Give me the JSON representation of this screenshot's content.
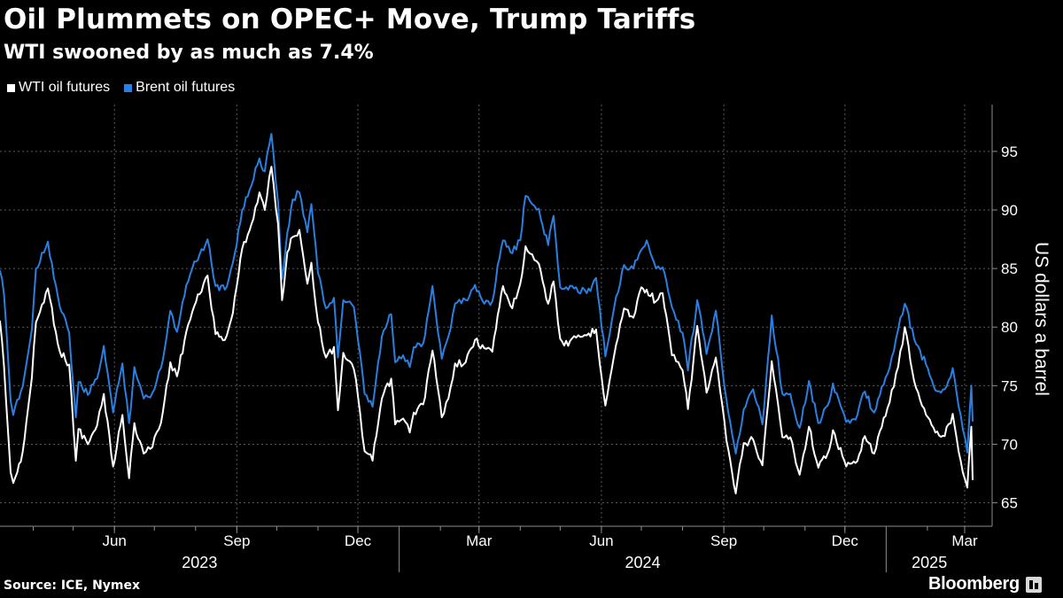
{
  "header": {
    "title": "Oil Plummets on OPEC+ Move, Trump Tariffs",
    "subtitle": "WTI swooned by as much as 7.4%"
  },
  "footer": {
    "source": "Source: ICE, Nymex",
    "brand": "Bloomberg"
  },
  "colors": {
    "background": "#000000",
    "wti": "#ffffff",
    "brent": "#2b7fe0",
    "grid": "#5a5a5a",
    "axis": "#8c8c8c"
  },
  "chart_data": {
    "type": "line",
    "title": "Oil Plummets on OPEC+ Move, Trump Tariffs",
    "subtitle": "WTI swooned by as much as 7.4%",
    "xlabel": "",
    "ylabel": "US dollars a barrel",
    "ylim": [
      63,
      99
    ],
    "yticks": [
      65,
      70,
      75,
      80,
      85,
      90,
      95
    ],
    "ytick_labels": [
      "65",
      "70",
      "75",
      "80",
      "85",
      "90",
      "95"
    ],
    "xlim": [
      "2023-03-07",
      "2025-03-07"
    ],
    "xticks": [
      {
        "date": "2023-06-01",
        "label": "Jun"
      },
      {
        "date": "2023-09-01",
        "label": "Sep"
      },
      {
        "date": "2023-12-01",
        "label": "Dec"
      },
      {
        "date": "2024-03-01",
        "label": "Mar"
      },
      {
        "date": "2024-06-01",
        "label": "Jun"
      },
      {
        "date": "2024-09-01",
        "label": "Sep"
      },
      {
        "date": "2024-12-01",
        "label": "Dec"
      },
      {
        "date": "2025-03-01",
        "label": "Mar"
      }
    ],
    "year_labels": [
      {
        "label": "2023",
        "from": "2023-03-07",
        "to": "2024-01-01"
      },
      {
        "label": "2024",
        "from": "2024-01-01",
        "to": "2025-01-01"
      },
      {
        "label": "2025",
        "from": "2025-01-01",
        "to": "2025-03-07"
      }
    ],
    "grid": true,
    "legend_position": "top-left",
    "series": [
      {
        "name": "WTI oil futures",
        "color": "#ffffff",
        "points": [
          [
            "2023-03-07",
            80.5
          ],
          [
            "2023-03-10",
            76.7
          ],
          [
            "2023-03-15",
            67.6
          ],
          [
            "2023-03-17",
            66.7
          ],
          [
            "2023-03-20",
            67.6
          ],
          [
            "2023-03-24",
            69.3
          ],
          [
            "2023-03-31",
            75.7
          ],
          [
            "2023-04-03",
            80.4
          ],
          [
            "2023-04-12",
            83.3
          ],
          [
            "2023-04-21",
            77.9
          ],
          [
            "2023-04-28",
            76.8
          ],
          [
            "2023-05-03",
            68.6
          ],
          [
            "2023-05-05",
            71.3
          ],
          [
            "2023-05-12",
            70.0
          ],
          [
            "2023-05-19",
            71.6
          ],
          [
            "2023-05-24",
            74.3
          ],
          [
            "2023-05-31",
            68.1
          ],
          [
            "2023-06-07",
            72.5
          ],
          [
            "2023-06-12",
            67.1
          ],
          [
            "2023-06-16",
            71.8
          ],
          [
            "2023-06-23",
            69.2
          ],
          [
            "2023-06-28",
            69.6
          ],
          [
            "2023-07-06",
            71.8
          ],
          [
            "2023-07-13",
            77.0
          ],
          [
            "2023-07-18",
            75.8
          ],
          [
            "2023-07-25",
            79.6
          ],
          [
            "2023-07-31",
            81.8
          ],
          [
            "2023-08-04",
            82.8
          ],
          [
            "2023-08-10",
            84.4
          ],
          [
            "2023-08-16",
            79.4
          ],
          [
            "2023-08-23",
            78.9
          ],
          [
            "2023-08-29",
            81.2
          ],
          [
            "2023-09-05",
            86.7
          ],
          [
            "2023-09-12",
            88.8
          ],
          [
            "2023-09-18",
            91.5
          ],
          [
            "2023-09-22",
            90.0
          ],
          [
            "2023-09-27",
            93.7
          ],
          [
            "2023-10-02",
            88.8
          ],
          [
            "2023-10-05",
            82.3
          ],
          [
            "2023-10-09",
            86.4
          ],
          [
            "2023-10-13",
            87.7
          ],
          [
            "2023-10-18",
            88.3
          ],
          [
            "2023-10-24",
            83.7
          ],
          [
            "2023-10-27",
            85.5
          ],
          [
            "2023-11-01",
            80.4
          ],
          [
            "2023-11-07",
            77.4
          ],
          [
            "2023-11-13",
            78.3
          ],
          [
            "2023-11-16",
            72.9
          ],
          [
            "2023-11-20",
            77.8
          ],
          [
            "2023-11-28",
            76.4
          ],
          [
            "2023-12-01",
            74.1
          ],
          [
            "2023-12-06",
            69.4
          ],
          [
            "2023-12-12",
            68.6
          ],
          [
            "2023-12-19",
            73.9
          ],
          [
            "2023-12-26",
            75.6
          ],
          [
            "2023-12-29",
            71.7
          ],
          [
            "2024-01-04",
            72.2
          ],
          [
            "2024-01-09",
            71.0
          ],
          [
            "2024-01-12",
            72.7
          ],
          [
            "2024-01-19",
            73.4
          ],
          [
            "2024-01-26",
            78.0
          ],
          [
            "2024-02-02",
            72.3
          ],
          [
            "2024-02-07",
            73.9
          ],
          [
            "2024-02-12",
            76.9
          ],
          [
            "2024-02-20",
            77.0
          ],
          [
            "2024-02-27",
            78.9
          ],
          [
            "2024-03-05",
            78.2
          ],
          [
            "2024-03-11",
            77.9
          ],
          [
            "2024-03-15",
            81.0
          ],
          [
            "2024-03-19",
            83.5
          ],
          [
            "2024-03-26",
            81.6
          ],
          [
            "2024-04-01",
            83.7
          ],
          [
            "2024-04-05",
            86.9
          ],
          [
            "2024-04-10",
            86.2
          ],
          [
            "2024-04-15",
            85.4
          ],
          [
            "2024-04-22",
            82.0
          ],
          [
            "2024-04-26",
            83.9
          ],
          [
            "2024-05-01",
            79.0
          ],
          [
            "2024-05-07",
            78.4
          ],
          [
            "2024-05-13",
            79.1
          ],
          [
            "2024-05-21",
            79.3
          ],
          [
            "2024-05-28",
            79.8
          ],
          [
            "2024-06-04",
            73.3
          ],
          [
            "2024-06-12",
            78.5
          ],
          [
            "2024-06-18",
            81.6
          ],
          [
            "2024-06-25",
            80.8
          ],
          [
            "2024-07-01",
            83.4
          ],
          [
            "2024-07-05",
            83.2
          ],
          [
            "2024-07-12",
            82.2
          ],
          [
            "2024-07-17",
            82.9
          ],
          [
            "2024-07-24",
            77.6
          ],
          [
            "2024-08-01",
            76.3
          ],
          [
            "2024-08-05",
            73.0
          ],
          [
            "2024-08-12",
            80.1
          ],
          [
            "2024-08-19",
            74.4
          ],
          [
            "2024-08-26",
            77.4
          ],
          [
            "2024-09-03",
            70.3
          ],
          [
            "2024-09-10",
            65.8
          ],
          [
            "2024-09-16",
            70.1
          ],
          [
            "2024-09-23",
            70.4
          ],
          [
            "2024-09-30",
            68.2
          ],
          [
            "2024-10-07",
            77.1
          ],
          [
            "2024-10-15",
            70.6
          ],
          [
            "2024-10-21",
            70.6
          ],
          [
            "2024-10-28",
            67.4
          ],
          [
            "2024-11-04",
            71.5
          ],
          [
            "2024-11-11",
            68.0
          ],
          [
            "2024-11-18",
            69.2
          ],
          [
            "2024-11-22",
            71.2
          ],
          [
            "2024-12-02",
            68.1
          ],
          [
            "2024-12-09",
            68.4
          ],
          [
            "2024-12-16",
            70.7
          ],
          [
            "2024-12-23",
            69.2
          ],
          [
            "2025-01-02",
            73.1
          ],
          [
            "2025-01-10",
            76.6
          ],
          [
            "2025-01-15",
            80.0
          ],
          [
            "2025-01-22",
            75.4
          ],
          [
            "2025-01-31",
            72.5
          ],
          [
            "2025-02-07",
            71.0
          ],
          [
            "2025-02-14",
            70.7
          ],
          [
            "2025-02-20",
            72.6
          ],
          [
            "2025-02-26",
            68.6
          ],
          [
            "2025-03-03",
            66.3
          ],
          [
            "2025-03-04",
            68.3
          ],
          [
            "2025-03-06",
            71.5
          ],
          [
            "2025-03-07",
            67.0
          ]
        ]
      },
      {
        "name": "Brent oil futures",
        "color": "#2b7fe0",
        "points": [
          [
            "2023-03-07",
            84.8
          ],
          [
            "2023-03-10",
            82.8
          ],
          [
            "2023-03-15",
            73.7
          ],
          [
            "2023-03-17",
            72.5
          ],
          [
            "2023-03-20",
            73.8
          ],
          [
            "2023-03-24",
            74.9
          ],
          [
            "2023-03-31",
            79.8
          ],
          [
            "2023-04-03",
            85.0
          ],
          [
            "2023-04-12",
            87.3
          ],
          [
            "2023-04-21",
            81.7
          ],
          [
            "2023-04-28",
            79.5
          ],
          [
            "2023-05-03",
            72.3
          ],
          [
            "2023-05-05",
            75.3
          ],
          [
            "2023-05-12",
            74.2
          ],
          [
            "2023-05-19",
            75.6
          ],
          [
            "2023-05-24",
            78.4
          ],
          [
            "2023-05-31",
            72.7
          ],
          [
            "2023-06-07",
            76.9
          ],
          [
            "2023-06-12",
            71.8
          ],
          [
            "2023-06-16",
            76.6
          ],
          [
            "2023-06-23",
            73.9
          ],
          [
            "2023-06-28",
            74.0
          ],
          [
            "2023-07-06",
            76.5
          ],
          [
            "2023-07-13",
            81.4
          ],
          [
            "2023-07-18",
            79.6
          ],
          [
            "2023-07-25",
            83.6
          ],
          [
            "2023-07-31",
            85.6
          ],
          [
            "2023-08-04",
            86.2
          ],
          [
            "2023-08-10",
            87.5
          ],
          [
            "2023-08-16",
            83.5
          ],
          [
            "2023-08-23",
            83.2
          ],
          [
            "2023-08-29",
            85.5
          ],
          [
            "2023-09-05",
            90.0
          ],
          [
            "2023-09-12",
            92.1
          ],
          [
            "2023-09-18",
            94.4
          ],
          [
            "2023-09-22",
            93.3
          ],
          [
            "2023-09-27",
            96.5
          ],
          [
            "2023-10-02",
            90.7
          ],
          [
            "2023-10-05",
            84.1
          ],
          [
            "2023-10-09",
            88.1
          ],
          [
            "2023-10-13",
            90.9
          ],
          [
            "2023-10-18",
            91.5
          ],
          [
            "2023-10-24",
            88.1
          ],
          [
            "2023-10-27",
            90.5
          ],
          [
            "2023-11-01",
            84.6
          ],
          [
            "2023-11-07",
            81.6
          ],
          [
            "2023-11-13",
            82.5
          ],
          [
            "2023-11-16",
            77.4
          ],
          [
            "2023-11-20",
            82.3
          ],
          [
            "2023-11-28",
            81.7
          ],
          [
            "2023-12-01",
            78.9
          ],
          [
            "2023-12-06",
            74.3
          ],
          [
            "2023-12-12",
            73.2
          ],
          [
            "2023-12-19",
            79.2
          ],
          [
            "2023-12-26",
            81.1
          ],
          [
            "2023-12-29",
            77.0
          ],
          [
            "2024-01-04",
            77.6
          ],
          [
            "2024-01-09",
            76.6
          ],
          [
            "2024-01-12",
            78.3
          ],
          [
            "2024-01-19",
            78.6
          ],
          [
            "2024-01-26",
            83.5
          ],
          [
            "2024-02-02",
            77.3
          ],
          [
            "2024-02-07",
            79.2
          ],
          [
            "2024-02-12",
            82.0
          ],
          [
            "2024-02-20",
            82.3
          ],
          [
            "2024-02-27",
            83.6
          ],
          [
            "2024-03-05",
            82.0
          ],
          [
            "2024-03-11",
            82.2
          ],
          [
            "2024-03-15",
            85.3
          ],
          [
            "2024-03-19",
            87.4
          ],
          [
            "2024-03-26",
            86.3
          ],
          [
            "2024-04-01",
            87.4
          ],
          [
            "2024-04-05",
            91.2
          ],
          [
            "2024-04-10",
            90.5
          ],
          [
            "2024-04-15",
            90.1
          ],
          [
            "2024-04-22",
            87.0
          ],
          [
            "2024-04-26",
            89.5
          ],
          [
            "2024-05-01",
            83.4
          ],
          [
            "2024-05-07",
            83.2
          ],
          [
            "2024-05-13",
            83.4
          ],
          [
            "2024-05-21",
            82.9
          ],
          [
            "2024-05-28",
            84.2
          ],
          [
            "2024-06-04",
            77.5
          ],
          [
            "2024-06-12",
            82.6
          ],
          [
            "2024-06-18",
            85.3
          ],
          [
            "2024-06-25",
            85.0
          ],
          [
            "2024-07-01",
            86.6
          ],
          [
            "2024-07-05",
            87.4
          ],
          [
            "2024-07-12",
            85.0
          ],
          [
            "2024-07-17",
            85.1
          ],
          [
            "2024-07-24",
            81.7
          ],
          [
            "2024-08-01",
            79.5
          ],
          [
            "2024-08-05",
            76.3
          ],
          [
            "2024-08-12",
            82.3
          ],
          [
            "2024-08-19",
            77.7
          ],
          [
            "2024-08-26",
            81.4
          ],
          [
            "2024-09-03",
            73.8
          ],
          [
            "2024-09-10",
            69.2
          ],
          [
            "2024-09-16",
            73.0
          ],
          [
            "2024-09-23",
            74.7
          ],
          [
            "2024-09-30",
            71.7
          ],
          [
            "2024-10-07",
            81.0
          ],
          [
            "2024-10-15",
            74.3
          ],
          [
            "2024-10-21",
            74.3
          ],
          [
            "2024-10-28",
            71.4
          ],
          [
            "2024-11-04",
            75.4
          ],
          [
            "2024-11-11",
            71.8
          ],
          [
            "2024-11-18",
            73.3
          ],
          [
            "2024-11-22",
            75.2
          ],
          [
            "2024-12-02",
            71.9
          ],
          [
            "2024-12-09",
            72.1
          ],
          [
            "2024-12-16",
            74.5
          ],
          [
            "2024-12-23",
            72.7
          ],
          [
            "2025-01-02",
            76.0
          ],
          [
            "2025-01-10",
            79.8
          ],
          [
            "2025-01-15",
            82.0
          ],
          [
            "2025-01-22",
            79.0
          ],
          [
            "2025-01-31",
            76.8
          ],
          [
            "2025-02-07",
            74.6
          ],
          [
            "2025-02-14",
            74.7
          ],
          [
            "2025-02-20",
            76.5
          ],
          [
            "2025-02-26",
            72.5
          ],
          [
            "2025-03-03",
            69.3
          ],
          [
            "2025-03-04",
            71.3
          ],
          [
            "2025-03-06",
            75.0
          ],
          [
            "2025-03-07",
            72.0
          ]
        ]
      }
    ]
  }
}
